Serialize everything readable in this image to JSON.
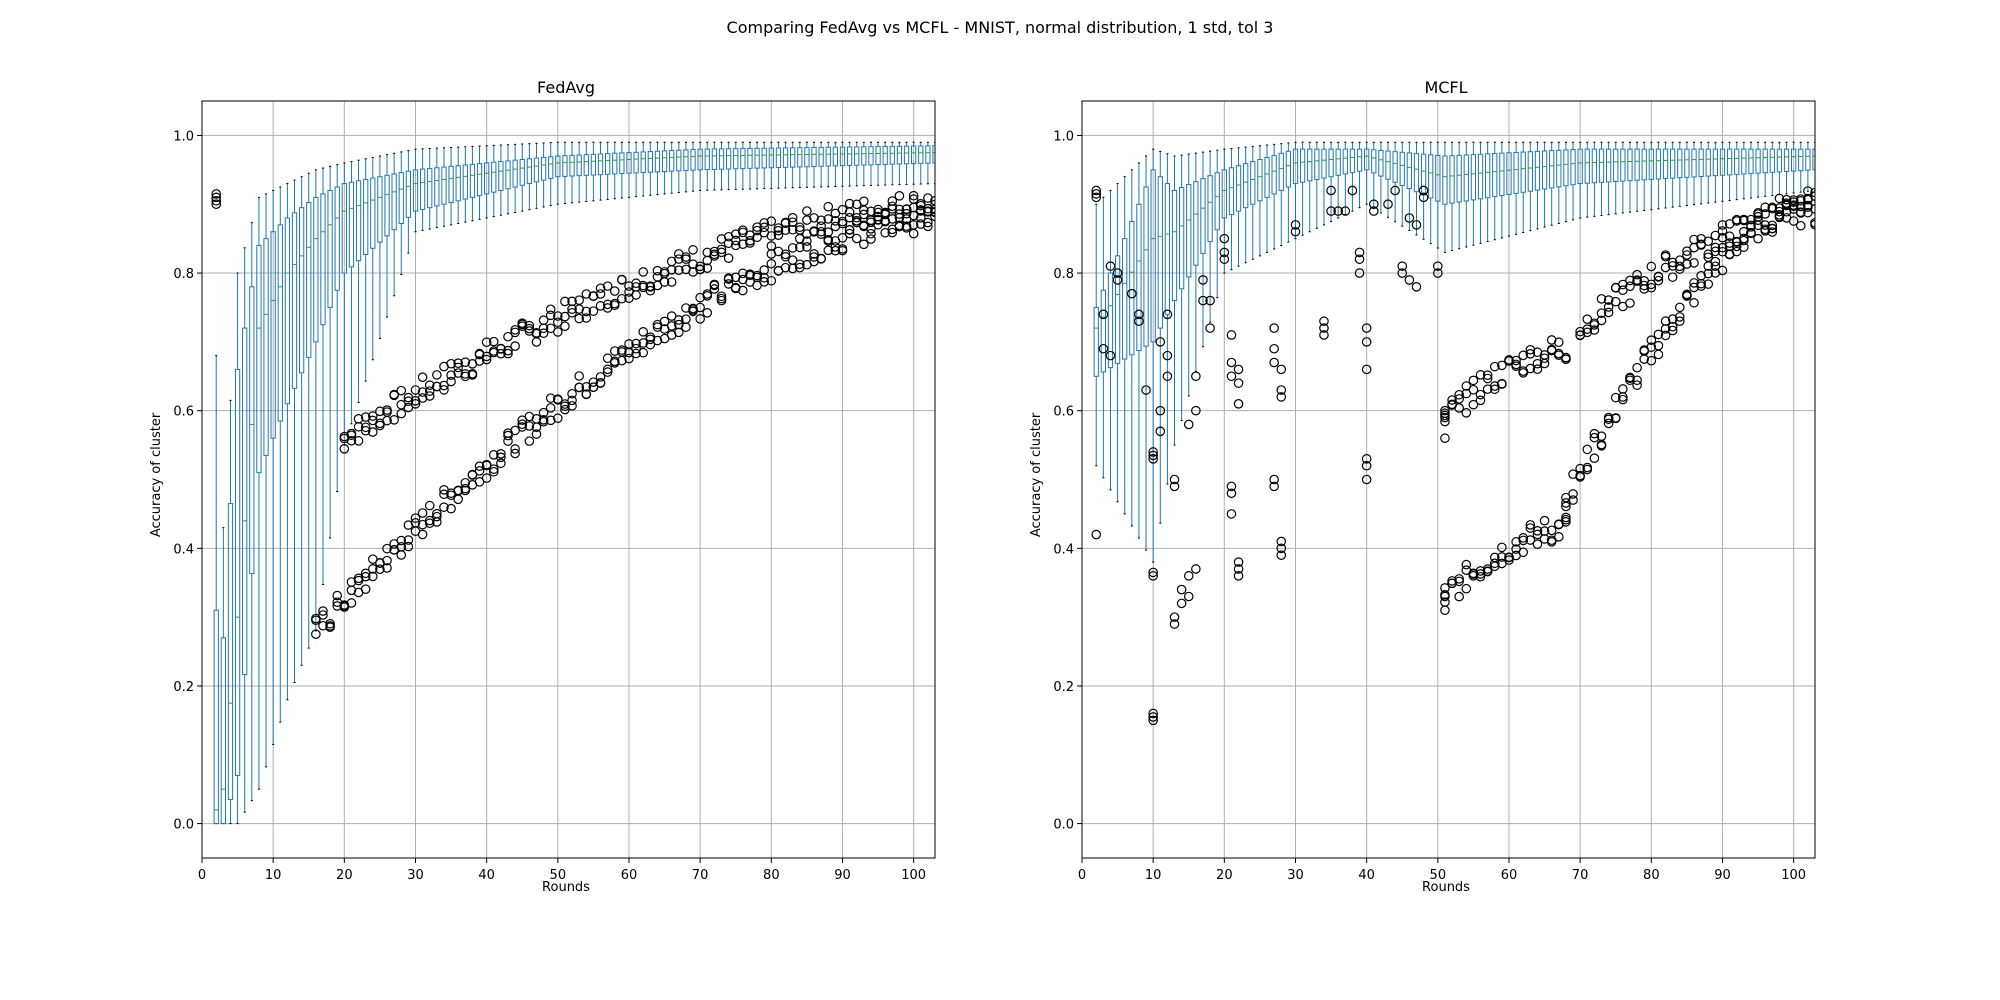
{
  "figure": {
    "suptitle": "Comparing FedAvg vs MCFL - MNIST, normal distribution, 1 std, tol 3",
    "box_color": "#1f77b4",
    "median_color": "#2ca02c",
    "grid_color": "#b0b0b0",
    "flier_color": "#000000"
  },
  "chart_data": [
    {
      "type": "box",
      "title": "FedAvg",
      "xlabel": "Rounds",
      "ylabel": "Accuracy of cluster",
      "xlim": [
        0,
        103
      ],
      "ylim": [
        -0.05,
        1.05
      ],
      "xticks": [
        "0",
        "10",
        "20",
        "30",
        "40",
        "50",
        "60",
        "70",
        "80",
        "90",
        "100"
      ],
      "yticks": [
        "0.0",
        "0.2",
        "0.4",
        "0.6",
        "0.8",
        "1.0"
      ],
      "grid": true,
      "rounds_range": [
        2,
        103
      ],
      "boxes": [
        {
          "round": 2,
          "whislo": 0.0,
          "q1": 0.0,
          "med": 0.02,
          "q3": 0.31,
          "whishi": 0.68,
          "fliers": [
            0.9,
            0.905,
            0.91,
            0.915
          ]
        },
        {
          "round": 3,
          "whislo": 0.0,
          "q1": 0.0,
          "med": 0.05,
          "q3": 0.27,
          "whishi": 0.43,
          "fliers": []
        },
        {
          "round": 5,
          "whislo": 0.0,
          "q1": 0.07,
          "med": 0.3,
          "q3": 0.66,
          "whishi": 0.8,
          "fliers": []
        },
        {
          "round": 8,
          "whislo": 0.05,
          "q1": 0.51,
          "med": 0.72,
          "q3": 0.84,
          "whishi": 0.91,
          "fliers": []
        },
        {
          "round": 12,
          "whislo": 0.18,
          "q1": 0.61,
          "med": 0.8,
          "q3": 0.88,
          "whishi": 0.93,
          "fliers": []
        },
        {
          "round": 16,
          "whislo": 0.28,
          "q1": 0.7,
          "med": 0.85,
          "q3": 0.91,
          "whishi": 0.95,
          "fliers": []
        },
        {
          "round": 20,
          "whislo": 0.55,
          "q1": 0.8,
          "med": 0.89,
          "q3": 0.93,
          "whishi": 0.96,
          "fliers": []
        },
        {
          "round": 30,
          "whislo": 0.86,
          "q1": 0.89,
          "med": 0.93,
          "q3": 0.95,
          "whishi": 0.98,
          "fliers": []
        },
        {
          "round": 50,
          "whislo": 0.9,
          "q1": 0.94,
          "med": 0.96,
          "q3": 0.97,
          "whishi": 0.99,
          "fliers": []
        },
        {
          "round": 70,
          "whislo": 0.92,
          "q1": 0.95,
          "med": 0.97,
          "q3": 0.98,
          "whishi": 0.99,
          "fliers": []
        },
        {
          "round": 103,
          "whislo": 0.93,
          "q1": 0.96,
          "med": 0.975,
          "q3": 0.985,
          "whishi": 0.99,
          "fliers": []
        }
      ],
      "outlier_bands": [
        {
          "from_round": 20,
          "to_round": 103,
          "y_start": 0.56,
          "y_end": 0.9,
          "copies": 3
        },
        {
          "from_round": 16,
          "to_round": 103,
          "y_start": 0.28,
          "y_end": 0.88,
          "copies": 3
        }
      ]
    },
    {
      "type": "box",
      "title": "MCFL",
      "xlabel": "Rounds",
      "ylabel": "Accuracy of cluster",
      "xlim": [
        0,
        103
      ],
      "ylim": [
        -0.05,
        1.05
      ],
      "xticks": [
        "0",
        "10",
        "20",
        "30",
        "40",
        "50",
        "60",
        "70",
        "80",
        "90",
        "100"
      ],
      "yticks": [
        "0.0",
        "0.2",
        "0.4",
        "0.6",
        "0.8",
        "1.0"
      ],
      "grid": true,
      "rounds_range": [
        2,
        103
      ],
      "boxes": [
        {
          "round": 2,
          "whislo": 0.52,
          "q1": 0.65,
          "med": 0.72,
          "q3": 0.75,
          "whishi": 0.9,
          "fliers": [
            0.42,
            0.91,
            0.915,
            0.92
          ]
        },
        {
          "round": 10,
          "whislo": 0.38,
          "q1": 0.7,
          "med": 0.85,
          "q3": 0.95,
          "whishi": 0.98,
          "fliers": [
            0.15,
            0.155,
            0.16,
            0.36,
            0.365,
            0.53,
            0.535,
            0.54
          ]
        },
        {
          "round": 13,
          "whislo": 0.55,
          "q1": 0.76,
          "med": 0.86,
          "q3": 0.92,
          "whishi": 0.97,
          "fliers": [
            0.29,
            0.3,
            0.49,
            0.5
          ]
        },
        {
          "round": 20,
          "whislo": 0.8,
          "q1": 0.88,
          "med": 0.92,
          "q3": 0.95,
          "whishi": 0.98,
          "fliers": [
            0.82,
            0.83,
            0.85
          ]
        },
        {
          "round": 30,
          "whislo": 0.85,
          "q1": 0.93,
          "med": 0.96,
          "q3": 0.98,
          "whishi": 0.99,
          "fliers": [
            0.86,
            0.87
          ]
        },
        {
          "round": 40,
          "whislo": 0.9,
          "q1": 0.95,
          "med": 0.97,
          "q3": 0.98,
          "whishi": 0.99,
          "fliers": [
            0.5,
            0.52,
            0.53,
            0.66,
            0.7,
            0.72
          ]
        },
        {
          "round": 51,
          "whislo": 0.83,
          "q1": 0.9,
          "med": 0.94,
          "q3": 0.97,
          "whishi": 0.99,
          "fliers": [
            0.31,
            0.33,
            0.56,
            0.59,
            0.6
          ]
        },
        {
          "round": 70,
          "whislo": 0.88,
          "q1": 0.93,
          "med": 0.96,
          "q3": 0.98,
          "whishi": 0.99,
          "fliers": []
        },
        {
          "round": 103,
          "whislo": 0.92,
          "q1": 0.95,
          "med": 0.97,
          "q3": 0.98,
          "whishi": 0.99,
          "fliers": []
        }
      ],
      "outlier_bands": [
        {
          "from_round": 51,
          "to_round": 68,
          "y_start": 0.33,
          "y_end": 0.43,
          "copies": 3
        },
        {
          "from_round": 51,
          "to_round": 68,
          "y_start": 0.59,
          "y_end": 0.69,
          "copies": 3
        },
        {
          "from_round": 68,
          "to_round": 103,
          "y_start": 0.47,
          "y_end": 0.91,
          "copies": 3
        },
        {
          "from_round": 70,
          "to_round": 103,
          "y_start": 0.72,
          "y_end": 0.89,
          "copies": 3
        }
      ],
      "early_fliers": [
        {
          "round": 3,
          "y": 0.69
        },
        {
          "round": 3,
          "y": 0.74
        },
        {
          "round": 4,
          "y": 0.68
        },
        {
          "round": 4,
          "y": 0.81
        },
        {
          "round": 5,
          "y": 0.8
        },
        {
          "round": 5,
          "y": 0.79
        },
        {
          "round": 7,
          "y": 0.77
        },
        {
          "round": 8,
          "y": 0.74
        },
        {
          "round": 8,
          "y": 0.73
        },
        {
          "round": 9,
          "y": 0.63
        },
        {
          "round": 11,
          "y": 0.57
        },
        {
          "round": 11,
          "y": 0.6
        },
        {
          "round": 11,
          "y": 0.7
        },
        {
          "round": 12,
          "y": 0.65
        },
        {
          "round": 12,
          "y": 0.68
        },
        {
          "round": 12,
          "y": 0.74
        },
        {
          "round": 14,
          "y": 0.32
        },
        {
          "round": 14,
          "y": 0.34
        },
        {
          "round": 15,
          "y": 0.33
        },
        {
          "round": 15,
          "y": 0.36
        },
        {
          "round": 15,
          "y": 0.58
        },
        {
          "round": 16,
          "y": 0.37
        },
        {
          "round": 16,
          "y": 0.6
        },
        {
          "round": 16,
          "y": 0.65
        },
        {
          "round": 17,
          "y": 0.76
        },
        {
          "round": 17,
          "y": 0.79
        },
        {
          "round": 18,
          "y": 0.72
        },
        {
          "round": 18,
          "y": 0.76
        },
        {
          "round": 21,
          "y": 0.45
        },
        {
          "round": 21,
          "y": 0.48
        },
        {
          "round": 21,
          "y": 0.49
        },
        {
          "round": 21,
          "y": 0.65
        },
        {
          "round": 21,
          "y": 0.67
        },
        {
          "round": 21,
          "y": 0.71
        },
        {
          "round": 22,
          "y": 0.36
        },
        {
          "round": 22,
          "y": 0.37
        },
        {
          "round": 22,
          "y": 0.38
        },
        {
          "round": 22,
          "y": 0.61
        },
        {
          "round": 22,
          "y": 0.64
        },
        {
          "round": 22,
          "y": 0.66
        },
        {
          "round": 27,
          "y": 0.49
        },
        {
          "round": 27,
          "y": 0.5
        },
        {
          "round": 27,
          "y": 0.67
        },
        {
          "round": 27,
          "y": 0.69
        },
        {
          "round": 27,
          "y": 0.72
        },
        {
          "round": 28,
          "y": 0.39
        },
        {
          "round": 28,
          "y": 0.4
        },
        {
          "round": 28,
          "y": 0.41
        },
        {
          "round": 28,
          "y": 0.62
        },
        {
          "round": 28,
          "y": 0.63
        },
        {
          "round": 28,
          "y": 0.66
        },
        {
          "round": 34,
          "y": 0.71
        },
        {
          "round": 34,
          "y": 0.72
        },
        {
          "round": 34,
          "y": 0.73
        },
        {
          "round": 35,
          "y": 0.89
        },
        {
          "round": 35,
          "y": 0.92
        },
        {
          "round": 36,
          "y": 0.89
        },
        {
          "round": 37,
          "y": 0.89
        },
        {
          "round": 38,
          "y": 0.92
        },
        {
          "round": 39,
          "y": 0.8
        },
        {
          "round": 39,
          "y": 0.82
        },
        {
          "round": 39,
          "y": 0.83
        },
        {
          "round": 41,
          "y": 0.89
        },
        {
          "round": 41,
          "y": 0.9
        },
        {
          "round": 43,
          "y": 0.9
        },
        {
          "round": 44,
          "y": 0.92
        },
        {
          "round": 45,
          "y": 0.81
        },
        {
          "round": 45,
          "y": 0.8
        },
        {
          "round": 46,
          "y": 0.79
        },
        {
          "round": 46,
          "y": 0.88
        },
        {
          "round": 47,
          "y": 0.78
        },
        {
          "round": 47,
          "y": 0.87
        },
        {
          "round": 48,
          "y": 0.91
        },
        {
          "round": 48,
          "y": 0.92
        },
        {
          "round": 50,
          "y": 0.8
        },
        {
          "round": 50,
          "y": 0.81
        }
      ]
    }
  ]
}
